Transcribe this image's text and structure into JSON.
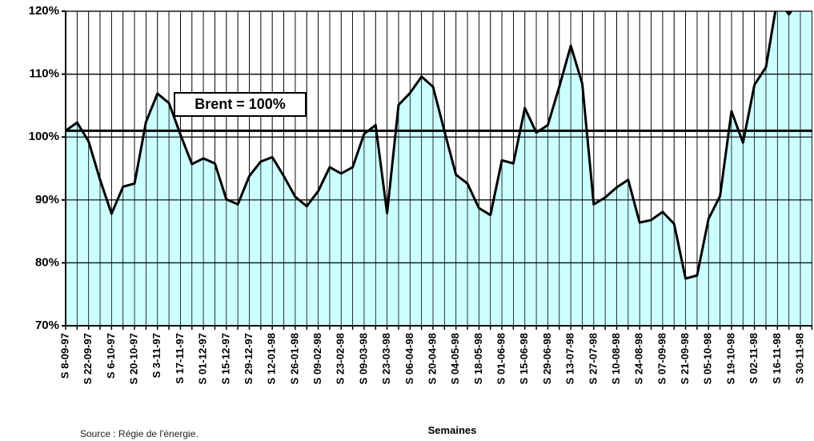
{
  "chart_data": {
    "type": "area",
    "x_label": "Semaines",
    "source": "Source : Régie de l'énergie.",
    "fill_color": "#ccffff",
    "line_color": "#000000",
    "categories": [
      "S 8-09-97",
      null,
      "S 22-09-97",
      null,
      "S 6-10-97",
      null,
      "S 20-10-97",
      null,
      "S 3-11-97",
      null,
      "S 17-11-97",
      null,
      "S 01-12-97",
      null,
      "S 15-12-97",
      null,
      "S 29-12-97",
      null,
      "S 12-01-98",
      null,
      "S 26-01-98",
      null,
      "S 09-02-98",
      null,
      "S 23-02-98",
      null,
      "S 09-03-98",
      null,
      "S 23-03-98",
      null,
      "S 06-04-98",
      null,
      "S 20-04-98",
      null,
      "S 04-05-98",
      null,
      "S 18-05-98",
      null,
      "S 01-06-98",
      null,
      "S 15-06-98",
      null,
      "S 29-06-98",
      null,
      "S 13-07-98",
      null,
      "S 27-07-98",
      null,
      "S 10-08-98",
      null,
      "S 24-08-98",
      null,
      "S 07-09-98",
      null,
      "S 21-09-98",
      null,
      "S 05-10-98",
      null,
      "S 19-10-98",
      null,
      "S 02-11-98",
      null,
      "S 16-11-98",
      null,
      "S 30-11-98",
      null
    ],
    "values": [
      101.0,
      102.3,
      99.3,
      93.2,
      87.8,
      92.1,
      92.6,
      102.4,
      106.9,
      105.4,
      100.4,
      95.7,
      96.6,
      95.8,
      90.1,
      89.3,
      93.8,
      96.1,
      96.8,
      93.8,
      90.5,
      89.0,
      91.4,
      95.2,
      94.2,
      95.2,
      100.5,
      101.9,
      87.9,
      105.1,
      107.0,
      109.6,
      108.0,
      100.9,
      94.0,
      92.6,
      88.7,
      87.6,
      96.3,
      95.8,
      104.6,
      100.7,
      101.9,
      108.0,
      114.5,
      108.5,
      89.3,
      90.4,
      92.0,
      93.2,
      86.4,
      86.8,
      88.1,
      86.2,
      77.5,
      78.0,
      87.0,
      90.6,
      104.1,
      99.1,
      108.3,
      111.1,
      122.0,
      119.5,
      122.0,
      123.0
    ],
    "ylim": [
      70,
      120
    ],
    "yticks": [
      {
        "value": 70,
        "label": "70%"
      },
      {
        "value": 80,
        "label": "80%"
      },
      {
        "value": 90,
        "label": "90%"
      },
      {
        "value": 100,
        "label": "100%"
      },
      {
        "value": 110,
        "label": "110%"
      },
      {
        "value": 120,
        "label": "120%"
      }
    ],
    "grid": true,
    "reference_line": {
      "value": 101,
      "label": "Brent = 100%"
    }
  }
}
